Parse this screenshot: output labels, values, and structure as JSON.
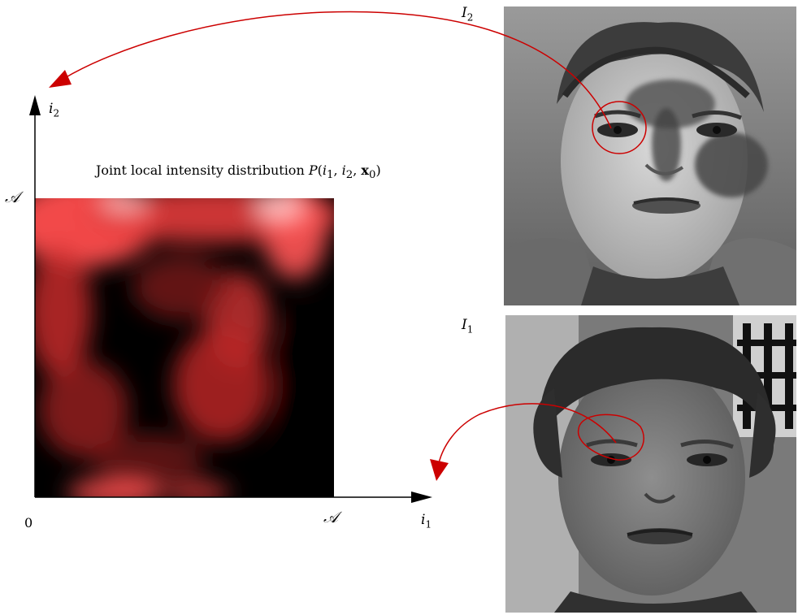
{
  "diagram": {
    "heatmap_title_prefix": "Joint local intensity distribution ",
    "heatmap_title_fn": "P",
    "heatmap_title_args": [
      "i",
      "1",
      "i",
      "2",
      "x",
      "0"
    ],
    "y_axis_label": {
      "base": "i",
      "sub": "2"
    },
    "x_axis_label": {
      "base": "i",
      "sub": "1"
    },
    "y_max_label": "𝒜",
    "x_max_label": "𝒜",
    "origin_label": "0",
    "image_top_label": {
      "base": "I",
      "sub": "2"
    },
    "image_bottom_label": {
      "base": "I",
      "sub": "1"
    },
    "colors": {
      "arrow": "#cc0000",
      "heat_low": "#000000",
      "heat_high": "#ff4d4d",
      "axis": "#000000"
    }
  }
}
